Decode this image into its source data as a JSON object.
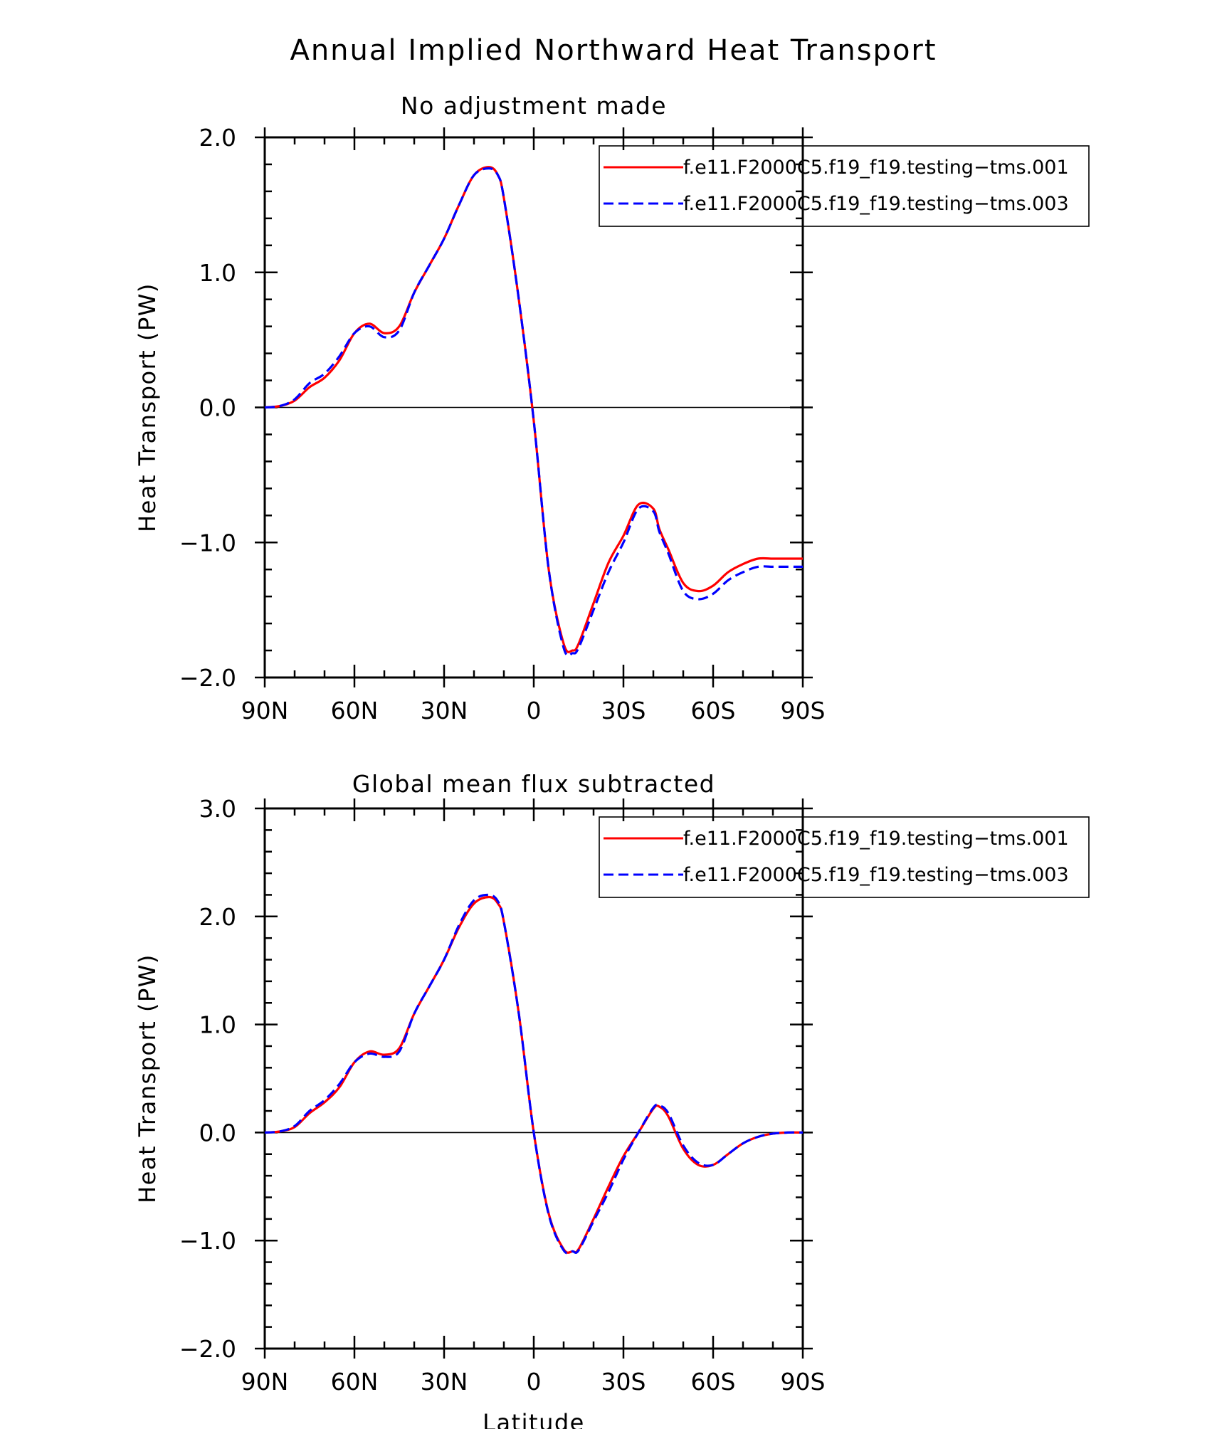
{
  "title": "Annual Implied Northward Heat Transport",
  "chart_data": [
    {
      "type": "line",
      "title": "No adjustment made",
      "ylabel": "Heat Transport (PW)",
      "xlabel": "",
      "xlim": [
        -90,
        90
      ],
      "ylim": [
        -2.0,
        2.0
      ],
      "xticks": [
        -90,
        -60,
        -30,
        0,
        30,
        60,
        90
      ],
      "xtick_labels": [
        "90N",
        "60N",
        "30N",
        "0",
        "30S",
        "60S",
        "90S"
      ],
      "yticks": [
        2.0,
        1.0,
        0.0,
        -1.0,
        -2.0
      ],
      "ytick_labels": [
        "2.0",
        "1.0",
        "0.0",
        "−1.0",
        "−2.0"
      ],
      "zero_line": true,
      "grid": false,
      "legend_position": "top-right",
      "x": [
        -90,
        -85,
        -80,
        -75,
        -70,
        -65,
        -60,
        -55,
        -50,
        -45,
        -40,
        -35,
        -30,
        -25,
        -20,
        -15,
        -12,
        -10,
        -5,
        0,
        5,
        10,
        13,
        15,
        20,
        25,
        30,
        35,
        40,
        42,
        45,
        50,
        55,
        60,
        65,
        70,
        75,
        80,
        85,
        90
      ],
      "series": [
        {
          "name": "f.e11.F2000C5.f19_f19.testing−tms.001",
          "color": "#ff0000",
          "dash": "solid",
          "values": [
            0.0,
            0.01,
            0.05,
            0.15,
            0.22,
            0.35,
            0.55,
            0.62,
            0.55,
            0.6,
            0.85,
            1.05,
            1.25,
            1.5,
            1.72,
            1.78,
            1.72,
            1.55,
            0.8,
            -0.1,
            -1.2,
            -1.75,
            -1.8,
            -1.75,
            -1.45,
            -1.15,
            -0.95,
            -0.72,
            -0.75,
            -0.9,
            -1.05,
            -1.3,
            -1.36,
            -1.32,
            -1.22,
            -1.16,
            -1.12,
            -1.12,
            -1.12,
            -1.12
          ]
        },
        {
          "name": "f.e11.F2000C5.f19_f19.testing−tms.003",
          "color": "#0000ff",
          "dash": "dashed",
          "values": [
            0.0,
            0.01,
            0.06,
            0.18,
            0.25,
            0.38,
            0.55,
            0.6,
            0.52,
            0.57,
            0.85,
            1.05,
            1.25,
            1.5,
            1.72,
            1.77,
            1.72,
            1.55,
            0.8,
            -0.1,
            -1.2,
            -1.78,
            -1.82,
            -1.78,
            -1.5,
            -1.22,
            -1.0,
            -0.75,
            -0.77,
            -0.92,
            -1.08,
            -1.36,
            -1.42,
            -1.38,
            -1.28,
            -1.22,
            -1.18,
            -1.18,
            -1.18,
            -1.18
          ]
        }
      ]
    },
    {
      "type": "line",
      "title": "Global mean flux subtracted",
      "ylabel": "Heat Transport (PW)",
      "xlabel": "Latitude",
      "xlim": [
        -90,
        90
      ],
      "ylim": [
        -2.0,
        3.0
      ],
      "xticks": [
        -90,
        -60,
        -30,
        0,
        30,
        60,
        90
      ],
      "xtick_labels": [
        "90N",
        "60N",
        "30N",
        "0",
        "30S",
        "60S",
        "90S"
      ],
      "yticks": [
        3.0,
        2.0,
        1.0,
        0.0,
        -1.0,
        -2.0
      ],
      "ytick_labels": [
        "3.0",
        "2.0",
        "1.0",
        "0.0",
        "−1.0",
        "−2.0"
      ],
      "zero_line": true,
      "grid": false,
      "legend_position": "top-right",
      "x": [
        -90,
        -85,
        -80,
        -75,
        -70,
        -65,
        -60,
        -55,
        -50,
        -45,
        -40,
        -35,
        -30,
        -25,
        -20,
        -15,
        -12,
        -10,
        -5,
        0,
        5,
        10,
        13,
        15,
        20,
        25,
        30,
        35,
        40,
        42,
        45,
        50,
        55,
        60,
        65,
        70,
        75,
        80,
        85,
        90
      ],
      "series": [
        {
          "name": "f.e11.F2000C5.f19_f19.testing−tms.001",
          "color": "#ff0000",
          "dash": "solid",
          "values": [
            0.0,
            0.01,
            0.05,
            0.18,
            0.28,
            0.42,
            0.65,
            0.75,
            0.72,
            0.78,
            1.1,
            1.35,
            1.6,
            1.9,
            2.12,
            2.18,
            2.12,
            1.95,
            1.1,
            0.0,
            -0.75,
            -1.08,
            -1.1,
            -1.08,
            -0.8,
            -0.5,
            -0.22,
            0.0,
            0.22,
            0.24,
            0.15,
            -0.15,
            -0.3,
            -0.3,
            -0.2,
            -0.1,
            -0.04,
            -0.01,
            0.0,
            0.0
          ]
        },
        {
          "name": "f.e11.F2000C5.f19_f19.testing−tms.003",
          "color": "#0000ff",
          "dash": "dashed",
          "values": [
            0.0,
            0.01,
            0.06,
            0.2,
            0.3,
            0.45,
            0.65,
            0.73,
            0.7,
            0.75,
            1.1,
            1.35,
            1.6,
            1.92,
            2.15,
            2.2,
            2.14,
            1.95,
            1.1,
            0.0,
            -0.76,
            -1.09,
            -1.1,
            -1.09,
            -0.82,
            -0.55,
            -0.25,
            0.0,
            0.23,
            0.25,
            0.18,
            -0.12,
            -0.28,
            -0.3,
            -0.2,
            -0.1,
            -0.04,
            -0.01,
            0.0,
            0.0
          ]
        }
      ]
    }
  ]
}
